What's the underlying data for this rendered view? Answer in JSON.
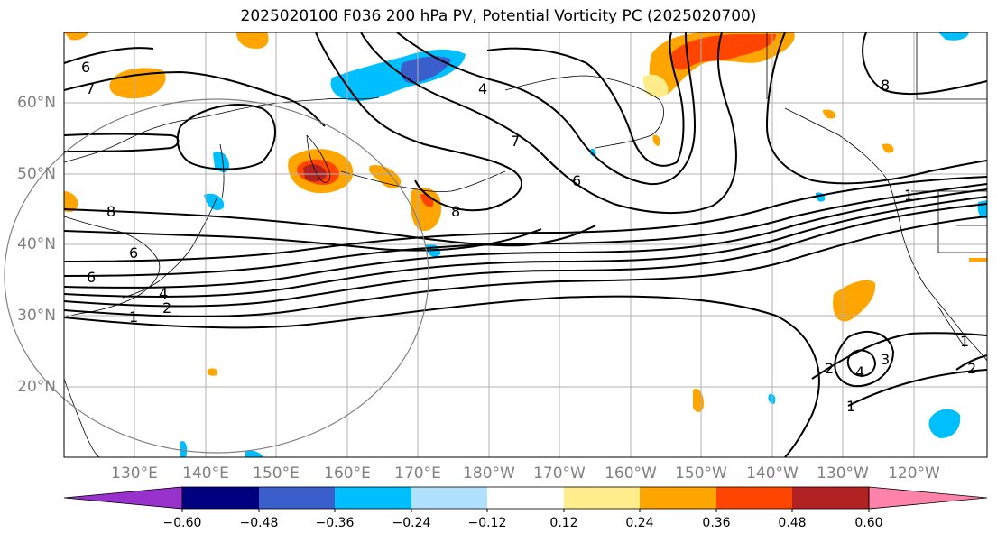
{
  "title": "2025020100 F036 200 hPa PV, Potential Vorticity PC (2025020700)",
  "lat_labels": [
    "60°N",
    "50°N",
    "40°N",
    "30°N",
    "20°N"
  ],
  "lon_labels": [
    "130°E",
    "140°E",
    "150°E",
    "160°E",
    "170°E",
    "180°W",
    "170°W",
    "160°W",
    "150°W",
    "140°W",
    "130°W",
    "120°W"
  ],
  "colorbar": {
    "ticks": [
      "−0.60",
      "−0.48",
      "−0.36",
      "−0.24",
      "−0.12",
      "0.12",
      "0.24",
      "0.36",
      "0.48",
      "0.60"
    ],
    "colors": [
      "#9932cc",
      "#000080",
      "#3a5fcd",
      "#00bfff",
      "#b0e2ff",
      "#ffffff",
      "#ffec8b",
      "#ffa500",
      "#ff4500",
      "#b22222",
      "#ff82ab"
    ]
  },
  "contour_labels": [
    "6",
    "7",
    "8",
    "6",
    "6",
    "1",
    "2",
    "4",
    "4",
    "7",
    "6",
    "8",
    "8",
    "1",
    "2",
    "4",
    "3",
    "1",
    "2",
    "1"
  ],
  "colors": {
    "contour": "#000000",
    "grid": "#b0b0b0",
    "circle": "#808080",
    "label": "#808080"
  }
}
